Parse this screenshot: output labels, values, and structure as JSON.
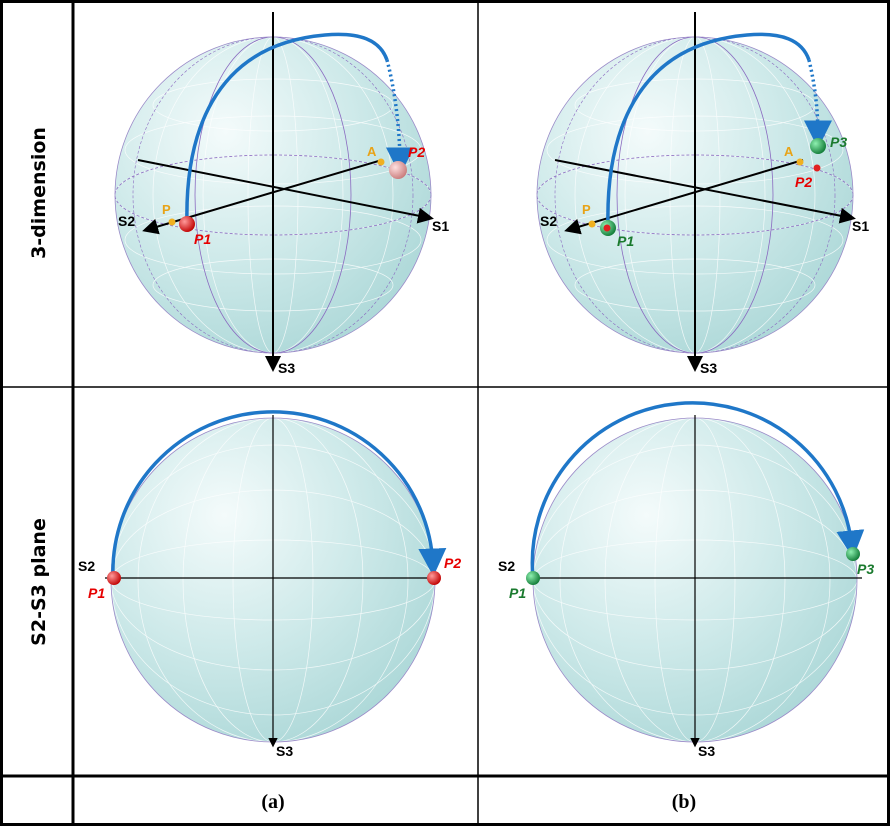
{
  "row_labels": {
    "top": "3-dimension",
    "bottom": "S2-S3  plane"
  },
  "captions": {
    "a": "(a)",
    "b": "(b)"
  },
  "axes": {
    "s1": "S1",
    "s2": "S2",
    "s3": "S3"
  },
  "points": {
    "p": "P",
    "a": "A",
    "p1": "P1",
    "p2": "P2",
    "p3": "P3"
  },
  "colors": {
    "sphere": "#bfe6e6",
    "trajectory": "#1f77c8",
    "red_point": "#e02020",
    "green_point": "#1e9e4a",
    "orange_point": "#f0b020",
    "label_red": "#e60000",
    "label_green": "#1a7a2e"
  }
}
